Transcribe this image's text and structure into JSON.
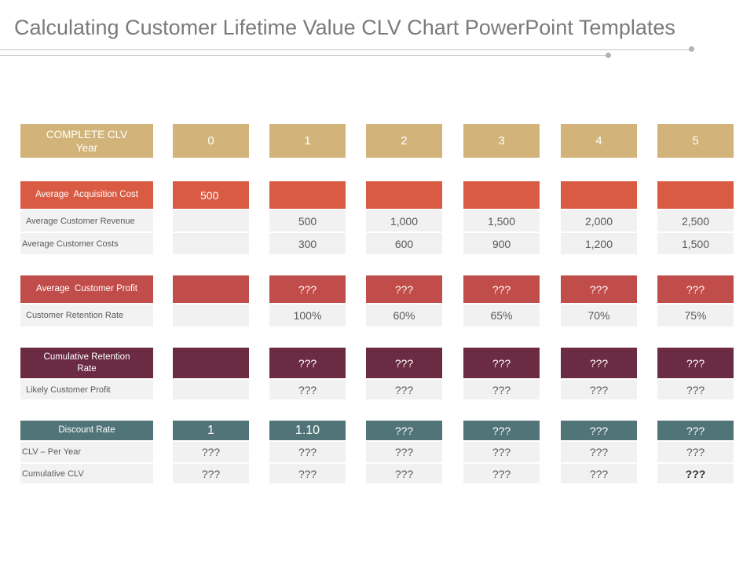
{
  "title": "Calculating Customer Lifetime Value CLV Chart PowerPoint Templates",
  "header": {
    "label": "COMPLETE CLV Year",
    "years": [
      "0",
      "1",
      "2",
      "3",
      "4",
      "5"
    ]
  },
  "section1": {
    "label": "Average  Acquisition Cost",
    "acquisition_value": "500",
    "revenue_label": "Average Customer Revenue",
    "revenue_values": [
      "500",
      "1,000",
      "1,500",
      "2,000",
      "2,500"
    ],
    "costs_label": "Average Customer Costs",
    "costs_values": [
      "300",
      "600",
      "900",
      "1,200",
      "1,500"
    ]
  },
  "section2": {
    "label": "Average  Customer Profit",
    "profit_values": [
      "???",
      "???",
      "???",
      "???",
      "???"
    ],
    "retention_label": "Customer Retention Rate",
    "retention_values": [
      "100%",
      "60%",
      "65%",
      "70%",
      "75%"
    ]
  },
  "section3": {
    "label": "Cumulative  Retention Rate",
    "cumulative_values": [
      "???",
      "???",
      "???",
      "???",
      "???"
    ],
    "likely_label": "Likely Customer Profit",
    "likely_values": [
      "???",
      "???",
      "???",
      "???",
      "???"
    ]
  },
  "section4": {
    "label": "Discount Rate",
    "discount_values": [
      "1",
      "1.10",
      "???",
      "???",
      "???",
      "???"
    ],
    "clv_label": "CLV – Per Year",
    "clv_values": [
      "???",
      "???",
      "???",
      "???",
      "???",
      "???"
    ],
    "cum_label": "Cumulative CLV",
    "cum_values": [
      "???",
      "???",
      "???",
      "???",
      "???",
      "???"
    ]
  },
  "colors": {
    "header": "#d2b47a",
    "red": "#d95b44",
    "rose": "#c14d4a",
    "plum": "#6b2c43",
    "teal": "#517478",
    "light": "#f1f1f1"
  }
}
